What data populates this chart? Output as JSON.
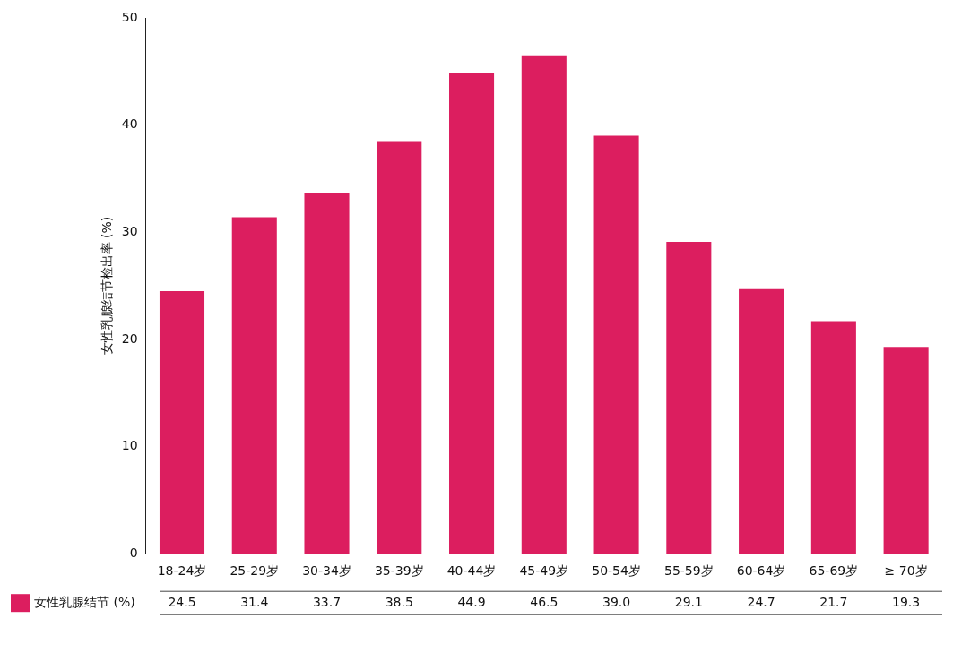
{
  "chart_data": {
    "type": "bar",
    "ylabel": "女性乳腺结节检出率 (%)",
    "categories": [
      "18-24岁",
      "25-29岁",
      "30-34岁",
      "35-39岁",
      "40-44岁",
      "45-49岁",
      "50-54岁",
      "55-59岁",
      "60-64岁",
      "65-69岁",
      "≥ 70岁"
    ],
    "series": [
      {
        "name": "女性乳腺结节 (%)",
        "color": "#dc1e5f",
        "values": [
          24.5,
          31.4,
          33.7,
          38.5,
          44.9,
          46.5,
          39.0,
          29.1,
          24.7,
          21.7,
          19.3
        ],
        "value_labels": [
          "24.5",
          "31.4",
          "33.7",
          "38.5",
          "44.9",
          "46.5",
          "39.0",
          "29.1",
          "24.7",
          "21.7",
          "19.3"
        ]
      }
    ],
    "ylim": [
      0,
      50
    ],
    "yticks": [
      0,
      10,
      20,
      30,
      40,
      50
    ],
    "grid": false,
    "legend": "bottom left"
  }
}
